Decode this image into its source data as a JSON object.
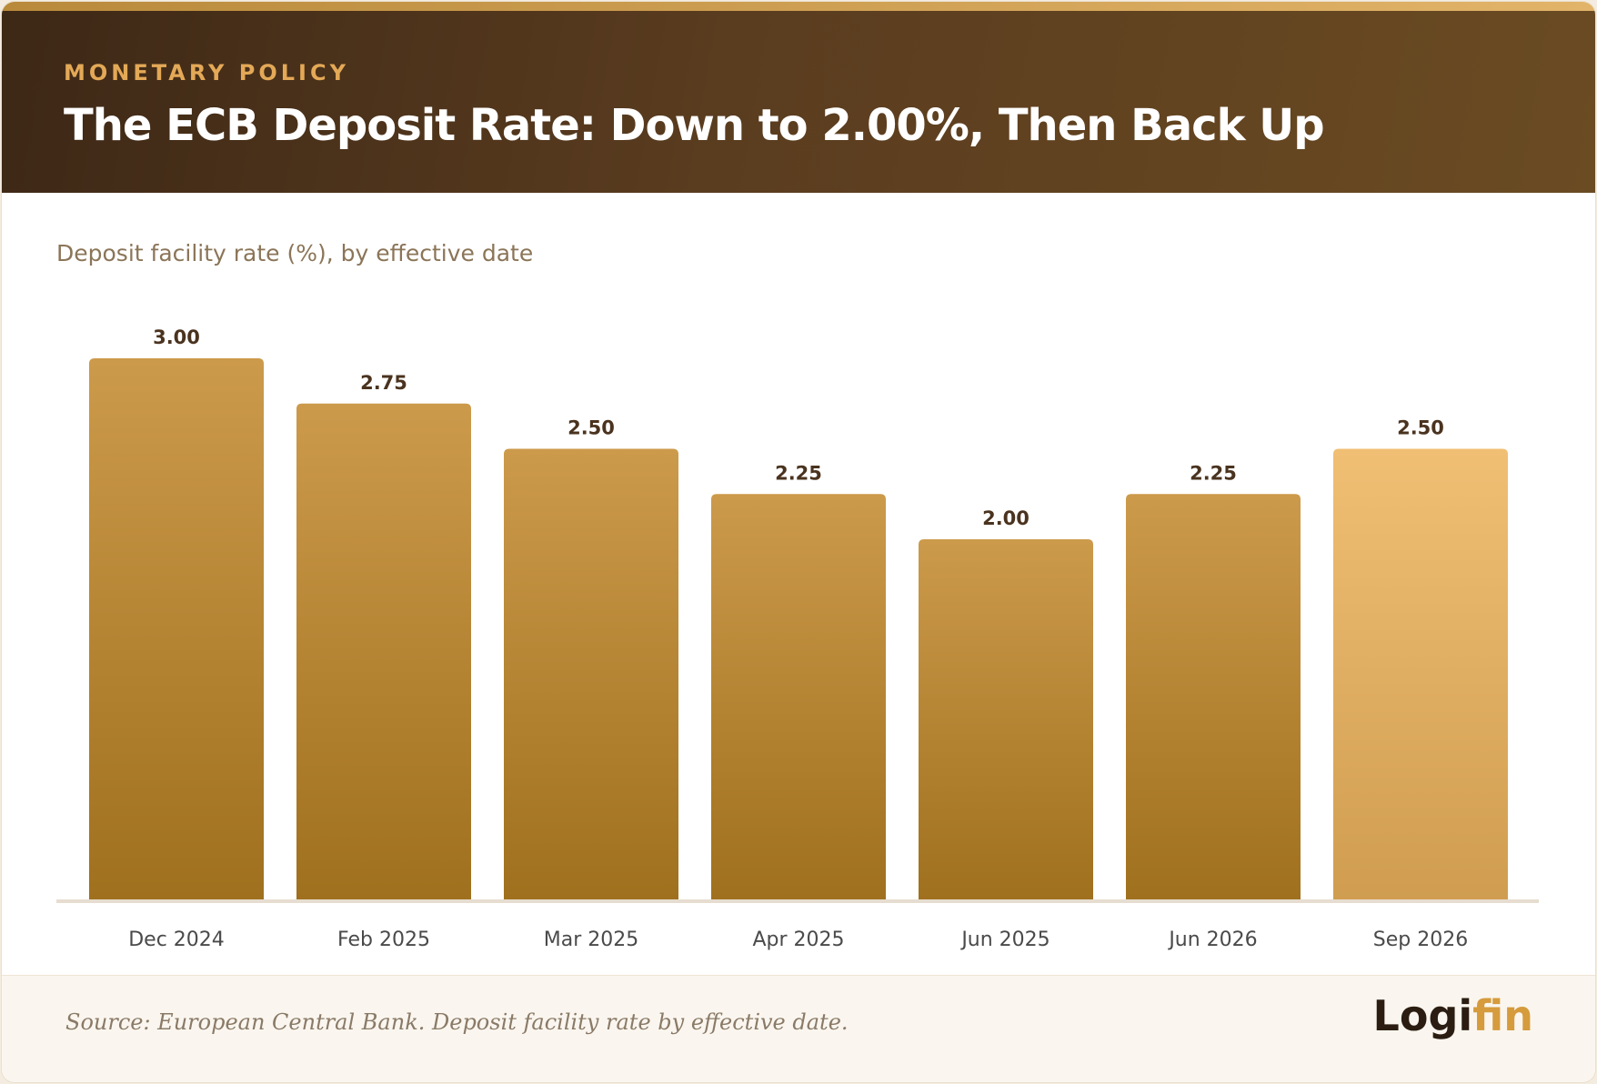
{
  "header": {
    "kicker": "MONETARY POLICY",
    "title": "The ECB Deposit Rate: Down to 2.00%, Then Back Up"
  },
  "chart_data": {
    "type": "bar",
    "title": "The ECB Deposit Rate: Down to 2.00%, Then Back Up",
    "subtitle": "Deposit facility rate (%), by effective date",
    "categories": [
      "Dec 2024",
      "Feb 2025",
      "Mar 2025",
      "Apr 2025",
      "Jun 2025",
      "Jun 2026",
      "Sep 2026"
    ],
    "values": [
      3.0,
      2.75,
      2.5,
      2.25,
      2.0,
      2.25,
      2.5
    ],
    "value_labels": [
      "3.00",
      "2.75",
      "2.50",
      "2.25",
      "2.00",
      "2.25",
      "2.50"
    ],
    "xlabel": "",
    "ylabel": "",
    "ylim": [
      0,
      3.0
    ],
    "grid": false,
    "highlight_index": 6,
    "colors": {
      "bar_top": "#cc9a4b",
      "bar_bottom": "#9f701d",
      "highlight_top": "#f0bf74",
      "highlight_bottom": "#d09d50",
      "label": "#4a331f",
      "tick": "#4a4a4a",
      "baseline": "#e6ddd0"
    }
  },
  "footer": {
    "source": "Source: European Central Bank. Deposit facility rate by effective date.",
    "logo_part1": "Logi",
    "logo_part2": "fin"
  }
}
